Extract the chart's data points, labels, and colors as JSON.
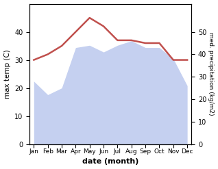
{
  "months": [
    "Jan",
    "Feb",
    "Mar",
    "Apr",
    "May",
    "Jun",
    "Jul",
    "Aug",
    "Sep",
    "Oct",
    "Nov",
    "Dec"
  ],
  "temperature": [
    30,
    32,
    35,
    40,
    45,
    42,
    37,
    37,
    36,
    36,
    30,
    30
  ],
  "precipitation": [
    28,
    22,
    25,
    43,
    44,
    41,
    44,
    46,
    43,
    43,
    38,
    26
  ],
  "temp_color": "#c0504d",
  "precip_fill_color": "#c5d0f0",
  "precip_line_color": "#aab8e8",
  "temp_ylim": [
    0,
    50
  ],
  "precip_ylim": [
    0,
    62.5
  ],
  "left_yticks": [
    0,
    10,
    20,
    30,
    40
  ],
  "right_yticks": [
    0,
    10,
    20,
    30,
    40,
    50
  ],
  "xlabel": "date (month)",
  "ylabel_left": "max temp (C)",
  "ylabel_right": "med. precipitation (kg/m2)",
  "bg_color": "#ffffff",
  "figsize": [
    3.18,
    2.47
  ],
  "dpi": 100
}
